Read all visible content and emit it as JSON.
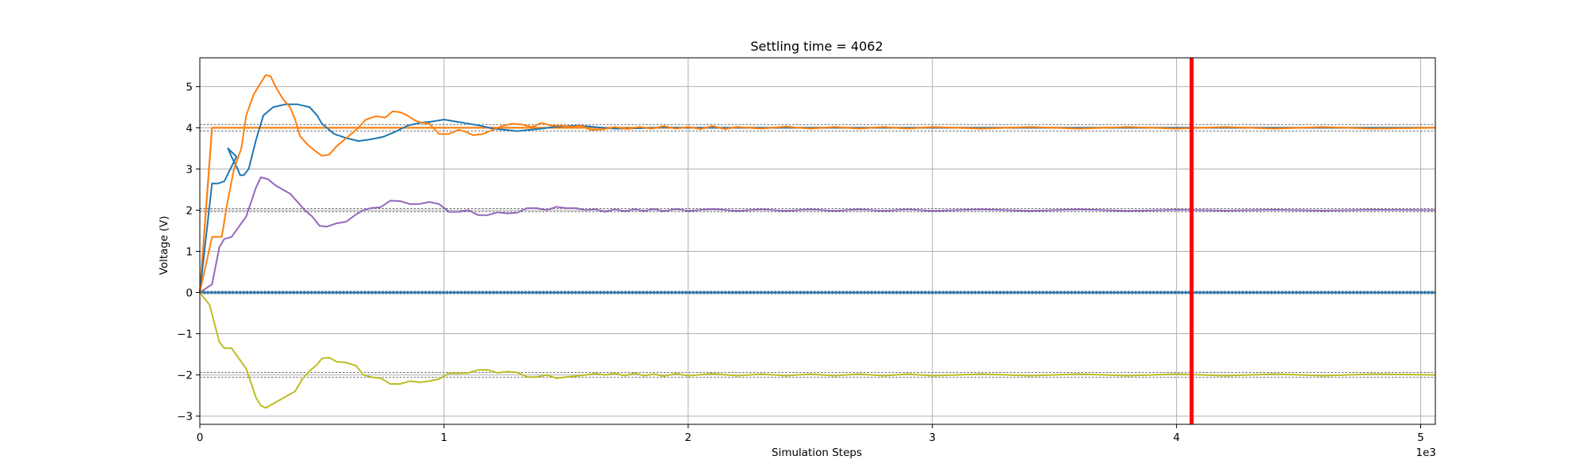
{
  "chart_data": {
    "type": "line",
    "title": "Settling time = 4062",
    "xlabel": "Simulation Steps",
    "ylabel": "Voltage (V)",
    "x_offset_label": "1e3",
    "xlim": [
      0,
      5060
    ],
    "ylim": [
      -3.2,
      5.7
    ],
    "xticks": [
      0,
      1000,
      2000,
      3000,
      4000,
      5000
    ],
    "xtick_labels": [
      "0",
      "1",
      "2",
      "3",
      "4",
      "5"
    ],
    "yticks": [
      -3,
      -2,
      -1,
      0,
      1,
      2,
      3,
      4,
      5
    ],
    "ytick_labels": [
      "−3",
      "−2",
      "−1",
      "0",
      "1",
      "2",
      "3",
      "4",
      "5"
    ],
    "grid": true,
    "settling_time": 4062,
    "settling_line_color": "#ff0000",
    "tolerance_bands": [
      {
        "center": 4,
        "lower": 3.92,
        "upper": 4.08
      },
      {
        "center": 2,
        "lower": 1.96,
        "upper": 2.04
      },
      {
        "center": 0,
        "lower": -0.03,
        "upper": 0.03
      },
      {
        "center": -2,
        "lower": -2.06,
        "upper": -1.94
      }
    ],
    "series": [
      {
        "color": "#ff7f0e",
        "style": "step-target",
        "points": [
          [
            0,
            0
          ],
          [
            50,
            4
          ],
          [
            5060,
            4
          ]
        ]
      },
      {
        "color": "#1f77b4",
        "style": "target",
        "points": [
          [
            0,
            0
          ],
          [
            5060,
            0
          ]
        ]
      },
      {
        "color": "#1f77b4",
        "style": "response",
        "points": [
          [
            0,
            0
          ],
          [
            50,
            2.65
          ],
          [
            75,
            2.65
          ],
          [
            100,
            2.7
          ],
          [
            150,
            3.3
          ],
          [
            115,
            3.5
          ],
          [
            130,
            3.3
          ],
          [
            155,
            3.0
          ],
          [
            165,
            2.85
          ],
          [
            180,
            2.85
          ],
          [
            200,
            3.0
          ],
          [
            230,
            3.7
          ],
          [
            260,
            4.3
          ],
          [
            300,
            4.5
          ],
          [
            350,
            4.57
          ],
          [
            400,
            4.57
          ],
          [
            450,
            4.5
          ],
          [
            480,
            4.3
          ],
          [
            500,
            4.1
          ],
          [
            520,
            4.0
          ],
          [
            550,
            3.85
          ],
          [
            600,
            3.75
          ],
          [
            650,
            3.68
          ],
          [
            700,
            3.72
          ],
          [
            750,
            3.78
          ],
          [
            800,
            3.9
          ],
          [
            850,
            4.05
          ],
          [
            900,
            4.12
          ],
          [
            950,
            4.15
          ],
          [
            1000,
            4.2
          ],
          [
            1050,
            4.15
          ],
          [
            1100,
            4.1
          ],
          [
            1150,
            4.05
          ],
          [
            1200,
            3.98
          ],
          [
            1250,
            3.95
          ],
          [
            1300,
            3.92
          ],
          [
            1350,
            3.95
          ],
          [
            1400,
            3.98
          ],
          [
            1450,
            4.02
          ],
          [
            1500,
            4.04
          ],
          [
            1550,
            4.05
          ],
          [
            1600,
            4.03
          ],
          [
            1650,
            4.0
          ],
          [
            1700,
            3.98
          ],
          [
            1800,
            3.99
          ],
          [
            1900,
            4.01
          ],
          [
            2000,
            4.0
          ],
          [
            2200,
            4.0
          ],
          [
            2500,
            4.0
          ],
          [
            3000,
            4.0
          ],
          [
            4000,
            4.0
          ],
          [
            5060,
            4.0
          ]
        ]
      },
      {
        "color": "#ff7f0e",
        "style": "response",
        "points": [
          [
            0,
            0
          ],
          [
            50,
            1.35
          ],
          [
            90,
            1.35
          ],
          [
            110,
            2.1
          ],
          [
            140,
            3.0
          ],
          [
            170,
            3.5
          ],
          [
            190,
            4.3
          ],
          [
            220,
            4.8
          ],
          [
            250,
            5.1
          ],
          [
            270,
            5.28
          ],
          [
            290,
            5.25
          ],
          [
            310,
            5.0
          ],
          [
            340,
            4.7
          ],
          [
            370,
            4.5
          ],
          [
            390,
            4.2
          ],
          [
            410,
            3.8
          ],
          [
            440,
            3.6
          ],
          [
            470,
            3.45
          ],
          [
            500,
            3.32
          ],
          [
            530,
            3.35
          ],
          [
            560,
            3.55
          ],
          [
            600,
            3.75
          ],
          [
            640,
            3.95
          ],
          [
            680,
            4.2
          ],
          [
            720,
            4.28
          ],
          [
            760,
            4.25
          ],
          [
            790,
            4.4
          ],
          [
            820,
            4.38
          ],
          [
            850,
            4.3
          ],
          [
            880,
            4.18
          ],
          [
            910,
            4.12
          ],
          [
            940,
            4.1
          ],
          [
            980,
            3.85
          ],
          [
            1020,
            3.85
          ],
          [
            1060,
            3.95
          ],
          [
            1090,
            3.9
          ],
          [
            1120,
            3.82
          ],
          [
            1160,
            3.85
          ],
          [
            1200,
            3.95
          ],
          [
            1240,
            4.05
          ],
          [
            1280,
            4.1
          ],
          [
            1320,
            4.08
          ],
          [
            1360,
            4.02
          ],
          [
            1400,
            4.12
          ],
          [
            1440,
            4.05
          ],
          [
            1480,
            4.05
          ],
          [
            1520,
            4.02
          ],
          [
            1560,
            4.05
          ],
          [
            1600,
            3.95
          ],
          [
            1650,
            3.96
          ],
          [
            1700,
            4.02
          ],
          [
            1750,
            3.97
          ],
          [
            1800,
            4.02
          ],
          [
            1850,
            3.98
          ],
          [
            1900,
            4.04
          ],
          [
            1950,
            3.98
          ],
          [
            2000,
            4.02
          ],
          [
            2050,
            3.97
          ],
          [
            2100,
            4.04
          ],
          [
            2150,
            3.97
          ],
          [
            2200,
            4.02
          ],
          [
            2300,
            3.98
          ],
          [
            2400,
            4.03
          ],
          [
            2500,
            3.98
          ],
          [
            2600,
            4.02
          ],
          [
            2700,
            3.98
          ],
          [
            2800,
            4.02
          ],
          [
            2900,
            3.98
          ],
          [
            3000,
            4.02
          ],
          [
            3200,
            3.98
          ],
          [
            3400,
            4.02
          ],
          [
            3600,
            3.98
          ],
          [
            3800,
            4.02
          ],
          [
            4000,
            3.98
          ],
          [
            4200,
            4.02
          ],
          [
            4400,
            3.98
          ],
          [
            4600,
            4.02
          ],
          [
            4800,
            3.98
          ],
          [
            5060,
            4.0
          ]
        ]
      },
      {
        "color": "#9467bd",
        "style": "response",
        "points": [
          [
            0,
            0
          ],
          [
            50,
            0.2
          ],
          [
            80,
            1.1
          ],
          [
            100,
            1.3
          ],
          [
            130,
            1.35
          ],
          [
            160,
            1.6
          ],
          [
            190,
            1.85
          ],
          [
            210,
            2.2
          ],
          [
            230,
            2.55
          ],
          [
            250,
            2.8
          ],
          [
            280,
            2.75
          ],
          [
            310,
            2.6
          ],
          [
            340,
            2.5
          ],
          [
            370,
            2.4
          ],
          [
            400,
            2.2
          ],
          [
            430,
            2.0
          ],
          [
            460,
            1.85
          ],
          [
            490,
            1.62
          ],
          [
            520,
            1.6
          ],
          [
            560,
            1.68
          ],
          [
            600,
            1.72
          ],
          [
            640,
            1.9
          ],
          [
            670,
            2.0
          ],
          [
            700,
            2.05
          ],
          [
            740,
            2.07
          ],
          [
            780,
            2.23
          ],
          [
            820,
            2.22
          ],
          [
            860,
            2.15
          ],
          [
            900,
            2.15
          ],
          [
            940,
            2.2
          ],
          [
            980,
            2.15
          ],
          [
            1020,
            1.96
          ],
          [
            1060,
            1.96
          ],
          [
            1100,
            2.0
          ],
          [
            1140,
            1.88
          ],
          [
            1180,
            1.88
          ],
          [
            1220,
            1.95
          ],
          [
            1260,
            1.92
          ],
          [
            1300,
            1.94
          ],
          [
            1340,
            2.05
          ],
          [
            1380,
            2.05
          ],
          [
            1420,
            2.0
          ],
          [
            1460,
            2.08
          ],
          [
            1500,
            2.05
          ],
          [
            1540,
            2.05
          ],
          [
            1580,
            2.0
          ],
          [
            1620,
            2.02
          ],
          [
            1660,
            1.96
          ],
          [
            1700,
            2.02
          ],
          [
            1740,
            1.97
          ],
          [
            1780,
            2.02
          ],
          [
            1820,
            1.98
          ],
          [
            1860,
            2.03
          ],
          [
            1900,
            1.97
          ],
          [
            1950,
            2.03
          ],
          [
            2000,
            1.98
          ],
          [
            2100,
            2.03
          ],
          [
            2200,
            1.98
          ],
          [
            2300,
            2.02
          ],
          [
            2400,
            1.98
          ],
          [
            2500,
            2.02
          ],
          [
            2600,
            1.98
          ],
          [
            2700,
            2.02
          ],
          [
            2800,
            1.98
          ],
          [
            2900,
            2.02
          ],
          [
            3000,
            1.98
          ],
          [
            3200,
            2.02
          ],
          [
            3400,
            1.98
          ],
          [
            3600,
            2.02
          ],
          [
            3800,
            1.98
          ],
          [
            4000,
            2.01
          ],
          [
            4200,
            1.99
          ],
          [
            4400,
            2.01
          ],
          [
            4600,
            1.99
          ],
          [
            4800,
            2.01
          ],
          [
            5060,
            2.0
          ]
        ]
      },
      {
        "color": "#bcbd22",
        "style": "response",
        "points": [
          [
            0,
            0
          ],
          [
            40,
            -0.3
          ],
          [
            80,
            -1.2
          ],
          [
            100,
            -1.35
          ],
          [
            130,
            -1.35
          ],
          [
            160,
            -1.6
          ],
          [
            190,
            -1.85
          ],
          [
            210,
            -2.2
          ],
          [
            230,
            -2.55
          ],
          [
            250,
            -2.75
          ],
          [
            270,
            -2.8
          ],
          [
            300,
            -2.7
          ],
          [
            330,
            -2.6
          ],
          [
            360,
            -2.5
          ],
          [
            390,
            -2.4
          ],
          [
            420,
            -2.1
          ],
          [
            450,
            -1.9
          ],
          [
            480,
            -1.75
          ],
          [
            500,
            -1.6
          ],
          [
            530,
            -1.58
          ],
          [
            560,
            -1.68
          ],
          [
            600,
            -1.7
          ],
          [
            640,
            -1.78
          ],
          [
            670,
            -2.0
          ],
          [
            700,
            -2.05
          ],
          [
            740,
            -2.08
          ],
          [
            780,
            -2.22
          ],
          [
            820,
            -2.22
          ],
          [
            860,
            -2.15
          ],
          [
            900,
            -2.18
          ],
          [
            940,
            -2.15
          ],
          [
            980,
            -2.1
          ],
          [
            1020,
            -1.96
          ],
          [
            1060,
            -1.96
          ],
          [
            1100,
            -1.95
          ],
          [
            1140,
            -1.88
          ],
          [
            1180,
            -1.88
          ],
          [
            1220,
            -1.95
          ],
          [
            1260,
            -1.92
          ],
          [
            1300,
            -1.94
          ],
          [
            1340,
            -2.05
          ],
          [
            1380,
            -2.05
          ],
          [
            1420,
            -2.0
          ],
          [
            1460,
            -2.08
          ],
          [
            1500,
            -2.05
          ],
          [
            1540,
            -2.03
          ],
          [
            1580,
            -2.0
          ],
          [
            1620,
            -1.97
          ],
          [
            1660,
            -2.0
          ],
          [
            1700,
            -1.96
          ],
          [
            1740,
            -2.02
          ],
          [
            1780,
            -1.96
          ],
          [
            1820,
            -2.02
          ],
          [
            1860,
            -1.98
          ],
          [
            1900,
            -2.03
          ],
          [
            1950,
            -1.97
          ],
          [
            2000,
            -2.02
          ],
          [
            2100,
            -1.97
          ],
          [
            2200,
            -2.02
          ],
          [
            2300,
            -1.98
          ],
          [
            2400,
            -2.02
          ],
          [
            2500,
            -1.98
          ],
          [
            2600,
            -2.02
          ],
          [
            2700,
            -1.98
          ],
          [
            2800,
            -2.02
          ],
          [
            2900,
            -1.98
          ],
          [
            3000,
            -2.02
          ],
          [
            3200,
            -1.98
          ],
          [
            3400,
            -2.02
          ],
          [
            3600,
            -1.98
          ],
          [
            3800,
            -2.02
          ],
          [
            4000,
            -1.98
          ],
          [
            4200,
            -2.02
          ],
          [
            4400,
            -1.98
          ],
          [
            4600,
            -2.02
          ],
          [
            4800,
            -1.98
          ],
          [
            5060,
            -2.0
          ]
        ]
      }
    ]
  }
}
